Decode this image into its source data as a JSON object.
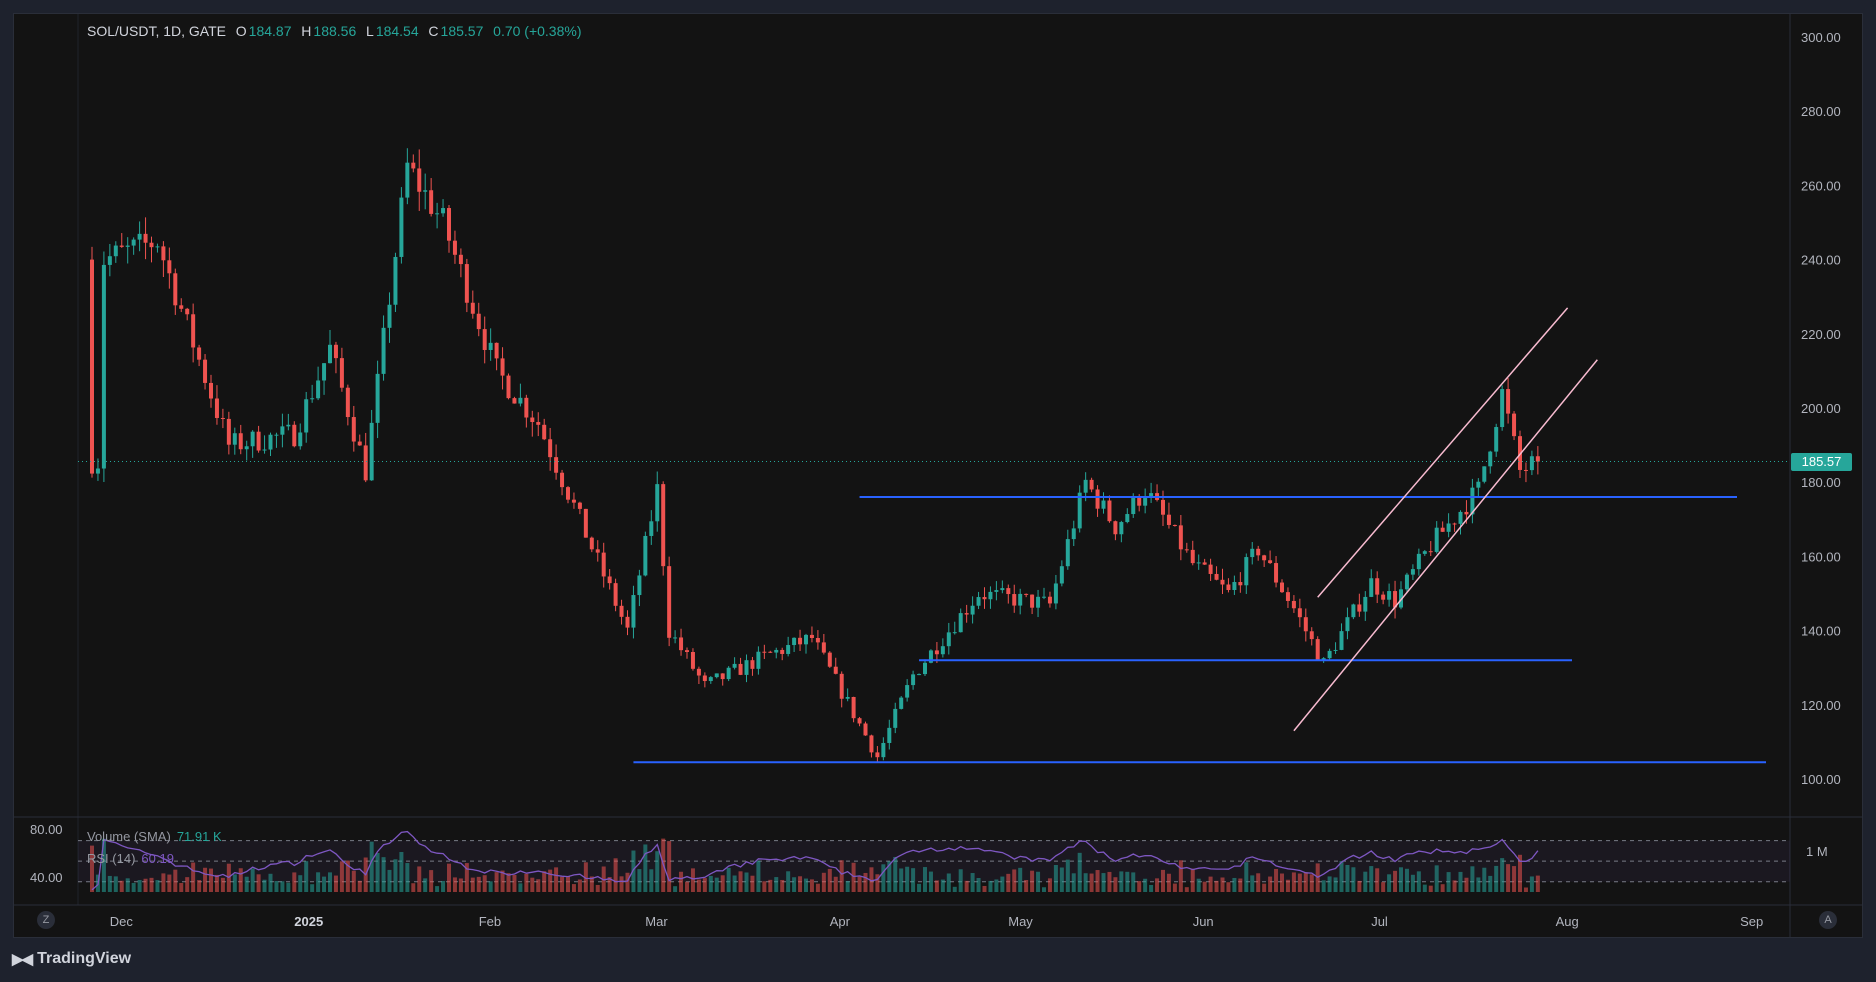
{
  "header": {
    "symbol": "SOL/USDT, 1D, GATE",
    "open_label": "O",
    "open": "184.87",
    "high_label": "H",
    "high": "188.56",
    "low_label": "L",
    "low": "184.54",
    "close_label": "C",
    "close": "185.57",
    "change": "0.70 (+0.38%)"
  },
  "volume_legend": {
    "label": "Volume (SMA)",
    "value": "71.91 K"
  },
  "rsi_legend": {
    "label": "RSI (14)",
    "value": "60.19"
  },
  "rsi_axis": {
    "upper": "80.00",
    "lower": "40.00"
  },
  "volume_axis_label": "1 M",
  "current_price_tag": "185.57",
  "footer": {
    "brand": "TradingView",
    "left_button": "Z",
    "right_button": "A"
  },
  "colors": {
    "up": "#26a69a",
    "down": "#ef5350",
    "hline": "#2962ff",
    "channel": "#f8bbd0",
    "rsi": "#7e57c2",
    "background": "#131313"
  },
  "chart_data": {
    "type": "candlestick",
    "price_axis": {
      "ylim": [
        96,
        306
      ],
      "ticks": [
        "300.00",
        "280.00",
        "260.00",
        "240.00",
        "220.00",
        "200.00",
        "180.00",
        "160.00",
        "140.00",
        "120.00",
        "100.00"
      ]
    },
    "time_axis": {
      "labels": [
        "Dec",
        "2025",
        "Feb",
        "Mar",
        "Apr",
        "May",
        "Jun",
        "Jul",
        "Aug",
        "Sep"
      ]
    },
    "horizontal_levels": [
      {
        "price": 176
      },
      {
        "price": 132
      },
      {
        "price": 104.5
      }
    ],
    "channel_lines": [
      {
        "from": {
          "date": "2025-06-21",
          "price": 149
        },
        "to": {
          "date": "2025-08-02",
          "price": 227
        }
      },
      {
        "from": {
          "date": "2025-06-17",
          "price": 113
        },
        "to": {
          "date": "2025-08-07",
          "price": 213
        }
      }
    ],
    "series_keypoints": [
      {
        "date": "2024-11-29",
        "price": 240
      },
      {
        "date": "2024-12-08",
        "price": 245
      },
      {
        "date": "2024-12-20",
        "price": 190
      },
      {
        "date": "2024-12-31",
        "price": 193
      },
      {
        "date": "2025-01-06",
        "price": 216
      },
      {
        "date": "2025-01-12",
        "price": 183
      },
      {
        "date": "2025-01-19",
        "price": 265
      },
      {
        "date": "2025-01-25",
        "price": 250
      },
      {
        "date": "2025-02-03",
        "price": 210
      },
      {
        "date": "2025-02-10",
        "price": 196
      },
      {
        "date": "2025-02-25",
        "price": 140
      },
      {
        "date": "2025-03-02",
        "price": 178
      },
      {
        "date": "2025-03-04",
        "price": 140
      },
      {
        "date": "2025-03-10",
        "price": 125
      },
      {
        "date": "2025-03-20",
        "price": 133
      },
      {
        "date": "2025-03-28",
        "price": 138
      },
      {
        "date": "2025-04-08",
        "price": 106
      },
      {
        "date": "2025-04-14",
        "price": 128
      },
      {
        "date": "2025-04-25",
        "price": 150
      },
      {
        "date": "2025-05-07",
        "price": 147
      },
      {
        "date": "2025-05-13",
        "price": 180
      },
      {
        "date": "2025-05-18",
        "price": 168
      },
      {
        "date": "2025-05-23",
        "price": 178
      },
      {
        "date": "2025-05-31",
        "price": 158
      },
      {
        "date": "2025-06-06",
        "price": 150
      },
      {
        "date": "2025-06-11",
        "price": 162
      },
      {
        "date": "2025-06-17",
        "price": 146
      },
      {
        "date": "2025-06-22",
        "price": 131
      },
      {
        "date": "2025-06-30",
        "price": 153
      },
      {
        "date": "2025-07-04",
        "price": 148
      },
      {
        "date": "2025-07-10",
        "price": 163
      },
      {
        "date": "2025-07-18",
        "price": 178
      },
      {
        "date": "2025-07-22",
        "price": 204
      },
      {
        "date": "2025-07-25",
        "price": 183
      },
      {
        "date": "2025-07-28",
        "price": 185.57
      }
    ],
    "rsi": {
      "period": 14,
      "last": 60.19,
      "levels": [
        70,
        50,
        30
      ]
    },
    "volume": {
      "sma_last": "71.91 K"
    }
  }
}
